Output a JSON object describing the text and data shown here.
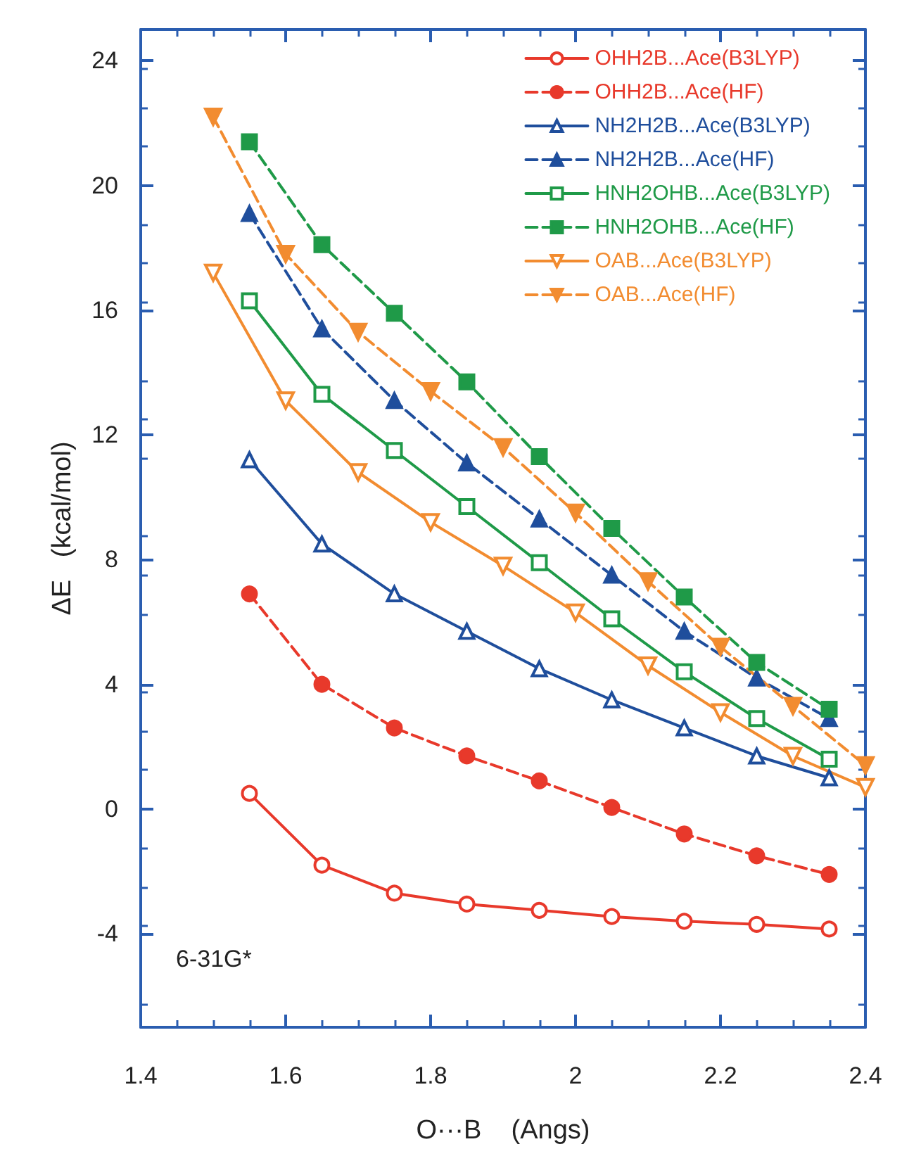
{
  "chart_data": {
    "type": "line",
    "xlabel": "O···B    (Angs)",
    "ylabel": "ΔE   (kcal/mol)",
    "annotations": [
      "6-31G*"
    ],
    "xlim": [
      1.4,
      2.4
    ],
    "xticks": [
      1.4,
      1.6,
      1.8,
      2,
      2.2,
      2.4
    ],
    "ylim": [
      -7,
      25
    ],
    "yticks": [
      -4,
      0,
      4,
      8,
      12,
      16,
      20,
      24
    ],
    "grid": false,
    "legend": "top right",
    "series": [
      {
        "name": "OHH2B...Ace(B3LYP)",
        "color": "#e8392b",
        "marker": "circle",
        "line_style": "solid",
        "x": [
          1.55,
          1.65,
          1.75,
          1.85,
          1.95,
          2.05,
          2.15,
          2.25,
          2.35
        ],
        "values": [
          0.5,
          -1.8,
          -2.7,
          -3.05,
          -3.25,
          -3.45,
          -3.6,
          -3.7,
          -3.85
        ]
      },
      {
        "name": "OHH2B...Ace(HF)",
        "color": "#e8392b",
        "marker": "circle",
        "line_style": "dashed",
        "x": [
          1.55,
          1.65,
          1.75,
          1.85,
          1.95,
          2.05,
          2.15,
          2.25,
          2.35
        ],
        "values": [
          6.9,
          4.0,
          2.6,
          1.7,
          0.9,
          0.05,
          -0.8,
          -1.5,
          -2.1
        ]
      },
      {
        "name": "NH2H2B...Ace(B3LYP)",
        "color": "#1f4e9c",
        "marker": "triangle",
        "line_style": "solid",
        "x": [
          1.55,
          1.65,
          1.75,
          1.85,
          1.95,
          2.05,
          2.15,
          2.25,
          2.35
        ],
        "values": [
          11.2,
          8.5,
          6.9,
          5.7,
          4.5,
          3.5,
          2.6,
          1.7,
          1.0
        ]
      },
      {
        "name": "NH2H2B...Ace(HF)",
        "color": "#1f4e9c",
        "marker": "triangle",
        "line_style": "dashed",
        "x": [
          1.55,
          1.65,
          1.75,
          1.85,
          1.95,
          2.05,
          2.15,
          2.25,
          2.35
        ],
        "values": [
          19.1,
          15.4,
          13.1,
          11.1,
          9.3,
          7.5,
          5.7,
          4.2,
          2.9
        ]
      },
      {
        "name": "HNH2OHB...Ace(B3LYP)",
        "color": "#1f9a48",
        "marker": "square",
        "line_style": "solid",
        "x": [
          1.55,
          1.65,
          1.75,
          1.85,
          1.95,
          2.05,
          2.15,
          2.25,
          2.35
        ],
        "values": [
          16.3,
          13.3,
          11.5,
          9.7,
          7.9,
          6.1,
          4.4,
          2.9,
          1.6
        ]
      },
      {
        "name": "HNH2OHB...Ace(HF)",
        "color": "#1f9a48",
        "marker": "square",
        "line_style": "dashed",
        "x": [
          1.55,
          1.65,
          1.75,
          1.85,
          1.95,
          2.05,
          2.15,
          2.25,
          2.35
        ],
        "values": [
          21.4,
          18.1,
          15.9,
          13.7,
          11.3,
          9.0,
          6.8,
          4.7,
          3.2
        ]
      },
      {
        "name": "OAB...Ace(B3LYP)",
        "color": "#f28c30",
        "marker": "triangle-down",
        "line_style": "solid",
        "x": [
          1.5,
          1.6,
          1.7,
          1.8,
          1.9,
          2.0,
          2.1,
          2.2,
          2.3,
          2.4
        ],
        "values": [
          17.2,
          13.1,
          10.8,
          9.2,
          7.8,
          6.3,
          4.6,
          3.1,
          1.7,
          0.7
        ]
      },
      {
        "name": "OAB...Ace(HF)",
        "color": "#f28c30",
        "marker": "triangle-down",
        "line_style": "dashed",
        "x": [
          1.5,
          1.6,
          1.7,
          1.8,
          1.9,
          2.0,
          2.1,
          2.2,
          2.3,
          2.4
        ],
        "values": [
          22.2,
          17.8,
          15.3,
          13.4,
          11.6,
          9.5,
          7.3,
          5.2,
          3.3,
          1.4
        ]
      }
    ]
  }
}
